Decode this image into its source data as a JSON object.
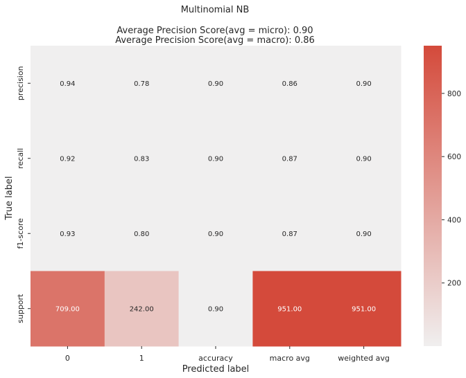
{
  "chart_data": {
    "type": "heatmap",
    "title_lines": [
      "Multinomial NB",
      "",
      "Average Precision Score(avg = micro): 0.90",
      "Average Precision Score(avg = macro): 0.86"
    ],
    "xlabel": "Predicted label",
    "ylabel": "True label",
    "columns": [
      "0",
      "1",
      "accuracy",
      "macro avg",
      "weighted avg"
    ],
    "rows": [
      "precision",
      "recall",
      "f1-score",
      "support"
    ],
    "values": [
      [
        0.94,
        0.78,
        0.9,
        0.86,
        0.9
      ],
      [
        0.92,
        0.83,
        0.9,
        0.87,
        0.9
      ],
      [
        0.93,
        0.8,
        0.9,
        0.87,
        0.9
      ],
      [
        709.0,
        242.0,
        0.9,
        951.0,
        951.0
      ]
    ],
    "cell_labels": [
      [
        "0.94",
        "0.78",
        "0.90",
        "0.86",
        "0.90"
      ],
      [
        "0.92",
        "0.83",
        "0.90",
        "0.87",
        "0.90"
      ],
      [
        "0.93",
        "0.80",
        "0.90",
        "0.87",
        "0.90"
      ],
      [
        "709.00",
        "242.00",
        "0.90",
        "951.00",
        "951.00"
      ]
    ],
    "colorbar": {
      "vmin": 0,
      "vmax": 951,
      "ticks": [
        200,
        400,
        600,
        800
      ],
      "tick_labels": [
        "200",
        "400",
        "600",
        "800"
      ],
      "color_low": "#f0efef",
      "color_high": "#d44a3b"
    }
  }
}
